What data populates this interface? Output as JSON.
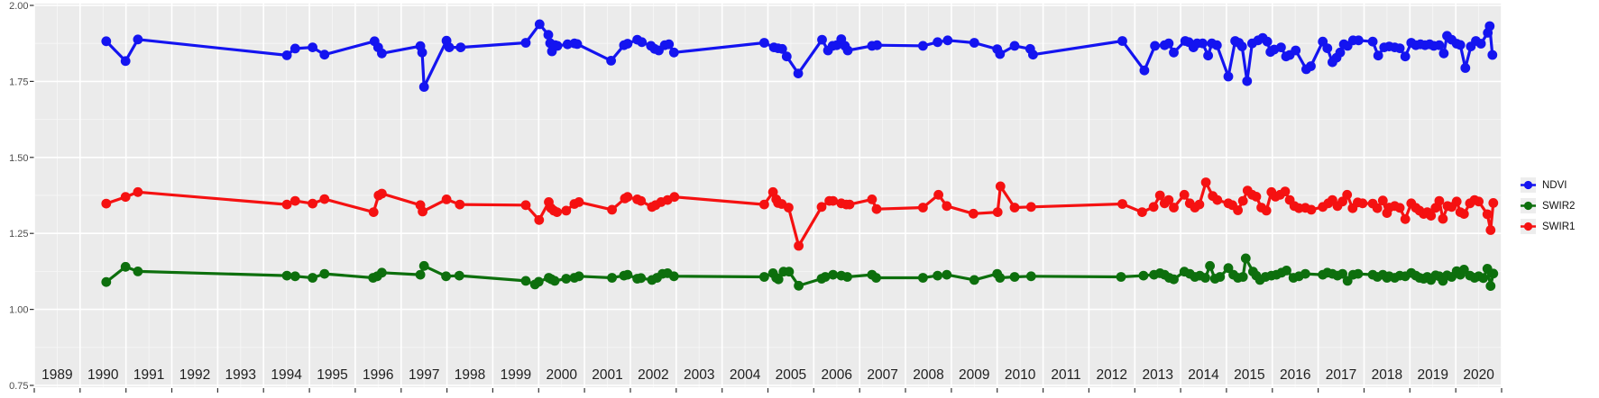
{
  "chart_data": {
    "type": "line-scatter",
    "title": "",
    "x_axis": {
      "range": [
        1989,
        2021
      ],
      "ticks": [
        "1989",
        "1990",
        "1991",
        "1992",
        "1993",
        "1994",
        "1995",
        "1996",
        "1997",
        "1998",
        "1999",
        "2000",
        "2001",
        "2002",
        "2003",
        "2004",
        "2005",
        "2006",
        "2007",
        "2008",
        "2009",
        "2010",
        "2011",
        "2012",
        "2013",
        "2014",
        "2015",
        "2016",
        "2017",
        "2018",
        "2019",
        "2020"
      ]
    },
    "y_axis": {
      "range": [
        0.75,
        2.0
      ],
      "ticks": [
        "0.75",
        "1.00",
        "1.25",
        "1.50",
        "1.75",
        "2.00"
      ]
    },
    "grid": {
      "panel_bg": "#ebebeb",
      "grid_color": "#ffffff",
      "minor_gridlines": true,
      "tick_color": "#333333",
      "x_label_color": "#1f1f1f",
      "y_label_color": "#4d4d4d"
    },
    "legend": {
      "position": "right-center",
      "key_bg": "#ededed",
      "entries": [
        {
          "label": "NDVI",
          "color": "#1414f0"
        },
        {
          "label": "SWIR2",
          "color": "#0d6f0d"
        },
        {
          "label": "SWIR1",
          "color": "#f51111"
        }
      ]
    },
    "series": [
      {
        "name": "NDVI",
        "color": "#1414f0",
        "x": [
          1990.57,
          1990.99,
          1991.26,
          1994.51,
          1994.69,
          1995.07,
          1995.33,
          1996.42,
          1996.5,
          1996.58,
          1997.42,
          1997.46,
          1997.5,
          1997.99,
          1998.05,
          1998.3,
          1999.72,
          2000.02,
          2000.21,
          2000.25,
          2000.29,
          2000.36,
          2000.41,
          2000.63,
          2000.78,
          2000.84,
          2001.58,
          2001.86,
          2001.94,
          2002.15,
          2002.25,
          2002.45,
          2002.53,
          2002.62,
          2002.75,
          2002.84,
          2002.95,
          2004.92,
          2005.13,
          2005.22,
          2005.31,
          2005.41,
          2005.66,
          2006.18,
          2006.31,
          2006.41,
          2006.5,
          2006.6,
          2006.68,
          2006.74,
          2007.27,
          2007.38,
          2008.38,
          2008.7,
          2008.92,
          2009.5,
          2010.0,
          2010.06,
          2010.38,
          2010.72,
          2010.78,
          2012.73,
          2013.21,
          2013.44,
          2013.65,
          2013.74,
          2013.85,
          2014.1,
          2014.18,
          2014.28,
          2014.36,
          2014.48,
          2014.6,
          2014.68,
          2014.79,
          2015.04,
          2015.19,
          2015.27,
          2015.34,
          2015.45,
          2015.56,
          2015.69,
          2015.79,
          2015.89,
          2015.96,
          2016.04,
          2016.19,
          2016.3,
          2016.38,
          2016.51,
          2016.74,
          2016.84,
          2017.1,
          2017.2,
          2017.31,
          2017.4,
          2017.48,
          2017.56,
          2017.64,
          2017.76,
          2017.88,
          2018.19,
          2018.31,
          2018.44,
          2018.55,
          2018.67,
          2018.78,
          2018.9,
          2019.03,
          2019.13,
          2019.23,
          2019.33,
          2019.43,
          2019.52,
          2019.64,
          2019.74,
          2019.81,
          2019.91,
          2020.02,
          2020.1,
          2020.21,
          2020.33,
          2020.44,
          2020.55,
          2020.7,
          2020.74,
          2020.8
        ],
        "y": [
          1.882,
          1.817,
          1.888,
          1.836,
          1.858,
          1.862,
          1.838,
          1.882,
          1.862,
          1.842,
          1.866,
          1.845,
          1.732,
          1.884,
          1.862,
          1.862,
          1.877,
          1.938,
          1.903,
          1.876,
          1.849,
          1.869,
          1.867,
          1.872,
          1.875,
          1.873,
          1.818,
          1.869,
          1.874,
          1.887,
          1.879,
          1.867,
          1.857,
          1.852,
          1.869,
          1.872,
          1.845,
          1.877,
          1.862,
          1.859,
          1.857,
          1.832,
          1.776,
          1.887,
          1.852,
          1.867,
          1.869,
          1.889,
          1.867,
          1.852,
          1.867,
          1.869,
          1.867,
          1.879,
          1.885,
          1.877,
          1.856,
          1.84,
          1.867,
          1.857,
          1.838,
          1.883,
          1.786,
          1.867,
          1.869,
          1.875,
          1.845,
          1.883,
          1.879,
          1.862,
          1.875,
          1.875,
          1.835,
          1.875,
          1.869,
          1.766,
          1.883,
          1.877,
          1.865,
          1.751,
          1.875,
          1.885,
          1.893,
          1.881,
          1.847,
          1.855,
          1.862,
          1.832,
          1.837,
          1.852,
          1.79,
          1.8,
          1.881,
          1.859,
          1.813,
          1.828,
          1.845,
          1.872,
          1.867,
          1.885,
          1.885,
          1.881,
          1.835,
          1.862,
          1.865,
          1.862,
          1.859,
          1.832,
          1.877,
          1.869,
          1.872,
          1.869,
          1.872,
          1.867,
          1.869,
          1.842,
          1.9,
          1.887,
          1.874,
          1.87,
          1.794,
          1.865,
          1.883,
          1.874,
          1.91,
          1.932,
          1.837
        ]
      },
      {
        "name": "SWIR2",
        "color": "#0d6f0d",
        "x": [
          1990.57,
          1990.99,
          1991.26,
          1994.51,
          1994.69,
          1995.07,
          1995.33,
          1996.39,
          1996.48,
          1996.58,
          1997.42,
          1997.5,
          1997.98,
          1998.27,
          1999.72,
          1999.92,
          2000.0,
          2000.22,
          2000.28,
          2000.35,
          2000.6,
          2000.78,
          2000.88,
          2001.6,
          2001.86,
          2001.94,
          2002.15,
          2002.23,
          2002.47,
          2002.58,
          2002.7,
          2002.81,
          2002.95,
          2004.92,
          2005.11,
          2005.18,
          2005.23,
          2005.34,
          2005.46,
          2005.67,
          2006.17,
          2006.25,
          2006.42,
          2006.6,
          2006.73,
          2007.27,
          2007.36,
          2008.38,
          2008.7,
          2008.9,
          2009.5,
          2010.0,
          2010.06,
          2010.38,
          2010.74,
          2012.7,
          2013.19,
          2013.42,
          2013.55,
          2013.65,
          2013.75,
          2013.85,
          2014.08,
          2014.2,
          2014.31,
          2014.42,
          2014.54,
          2014.64,
          2014.75,
          2014.86,
          2015.04,
          2015.15,
          2015.25,
          2015.36,
          2015.42,
          2015.58,
          2015.65,
          2015.73,
          2015.85,
          2015.98,
          2016.09,
          2016.2,
          2016.31,
          2016.46,
          2016.58,
          2016.72,
          2017.1,
          2017.2,
          2017.31,
          2017.42,
          2017.53,
          2017.64,
          2017.76,
          2017.87,
          2018.19,
          2018.29,
          2018.41,
          2018.5,
          2018.55,
          2018.67,
          2018.78,
          2018.9,
          2019.03,
          2019.13,
          2019.21,
          2019.3,
          2019.38,
          2019.46,
          2019.56,
          2019.64,
          2019.72,
          2019.81,
          2019.91,
          2020.02,
          2020.1,
          2020.18,
          2020.31,
          2020.41,
          2020.5,
          2020.6,
          2020.69,
          2020.76,
          2020.82
        ],
        "y": [
          1.09,
          1.14,
          1.125,
          1.111,
          1.109,
          1.104,
          1.117,
          1.104,
          1.109,
          1.121,
          1.114,
          1.143,
          1.109,
          1.111,
          1.094,
          1.082,
          1.091,
          1.104,
          1.099,
          1.094,
          1.101,
          1.104,
          1.109,
          1.104,
          1.111,
          1.114,
          1.101,
          1.103,
          1.097,
          1.104,
          1.117,
          1.119,
          1.109,
          1.107,
          1.119,
          1.104,
          1.099,
          1.124,
          1.124,
          1.078,
          1.101,
          1.107,
          1.114,
          1.111,
          1.107,
          1.114,
          1.104,
          1.104,
          1.111,
          1.114,
          1.097,
          1.117,
          1.104,
          1.107,
          1.109,
          1.107,
          1.111,
          1.114,
          1.119,
          1.114,
          1.104,
          1.099,
          1.124,
          1.117,
          1.107,
          1.111,
          1.104,
          1.143,
          1.101,
          1.107,
          1.136,
          1.114,
          1.104,
          1.107,
          1.168,
          1.124,
          1.111,
          1.097,
          1.107,
          1.111,
          1.114,
          1.121,
          1.128,
          1.104,
          1.109,
          1.117,
          1.114,
          1.121,
          1.117,
          1.111,
          1.117,
          1.094,
          1.114,
          1.117,
          1.114,
          1.107,
          1.114,
          1.104,
          1.109,
          1.104,
          1.111,
          1.109,
          1.12,
          1.111,
          1.104,
          1.101,
          1.107,
          1.097,
          1.112,
          1.109,
          1.094,
          1.112,
          1.107,
          1.126,
          1.114,
          1.131,
          1.111,
          1.104,
          1.109,
          1.103,
          1.134,
          1.077,
          1.118
        ]
      },
      {
        "name": "SWIR1",
        "color": "#f51111",
        "x": [
          1990.57,
          1990.99,
          1991.26,
          1994.51,
          1994.69,
          1995.07,
          1995.33,
          1996.4,
          1996.51,
          1996.58,
          1997.42,
          1997.47,
          1997.99,
          1998.28,
          1999.72,
          2000.01,
          2000.22,
          2000.27,
          2000.33,
          2000.4,
          2000.6,
          2000.78,
          2000.88,
          2001.6,
          2001.88,
          2001.94,
          2002.15,
          2002.23,
          2002.47,
          2002.55,
          2002.67,
          2002.81,
          2002.96,
          2004.92,
          2005.11,
          2005.18,
          2005.22,
          2005.3,
          2005.45,
          2005.67,
          2006.17,
          2006.34,
          2006.42,
          2006.6,
          2006.71,
          2006.78,
          2007.27,
          2007.37,
          2008.38,
          2008.72,
          2008.9,
          2009.48,
          2010.01,
          2010.07,
          2010.38,
          2010.74,
          2012.73,
          2013.16,
          2013.41,
          2013.55,
          2013.65,
          2013.74,
          2013.85,
          2014.08,
          2014.2,
          2014.31,
          2014.41,
          2014.55,
          2014.7,
          2014.8,
          2015.04,
          2015.13,
          2015.25,
          2015.36,
          2015.46,
          2015.56,
          2015.65,
          2015.76,
          2015.87,
          2015.98,
          2016.07,
          2016.17,
          2016.28,
          2016.38,
          2016.48,
          2016.58,
          2016.72,
          2016.85,
          2017.1,
          2017.22,
          2017.31,
          2017.42,
          2017.53,
          2017.63,
          2017.75,
          2017.86,
          2017.97,
          2018.19,
          2018.29,
          2018.41,
          2018.5,
          2018.55,
          2018.67,
          2018.78,
          2018.9,
          2019.03,
          2019.13,
          2019.21,
          2019.3,
          2019.38,
          2019.46,
          2019.56,
          2019.64,
          2019.72,
          2019.82,
          2019.91,
          2020.02,
          2020.1,
          2020.18,
          2020.31,
          2020.41,
          2020.5,
          2020.69,
          2020.76,
          2020.82
        ],
        "y": [
          1.348,
          1.37,
          1.386,
          1.345,
          1.357,
          1.348,
          1.363,
          1.32,
          1.375,
          1.381,
          1.343,
          1.322,
          1.362,
          1.345,
          1.343,
          1.294,
          1.353,
          1.333,
          1.325,
          1.32,
          1.325,
          1.347,
          1.353,
          1.328,
          1.365,
          1.37,
          1.362,
          1.357,
          1.337,
          1.343,
          1.353,
          1.36,
          1.37,
          1.345,
          1.386,
          1.362,
          1.35,
          1.347,
          1.335,
          1.209,
          1.337,
          1.357,
          1.357,
          1.349,
          1.345,
          1.345,
          1.362,
          1.33,
          1.335,
          1.377,
          1.34,
          1.315,
          1.32,
          1.405,
          1.335,
          1.337,
          1.347,
          1.32,
          1.337,
          1.375,
          1.349,
          1.36,
          1.335,
          1.377,
          1.349,
          1.335,
          1.345,
          1.418,
          1.373,
          1.36,
          1.349,
          1.343,
          1.326,
          1.357,
          1.391,
          1.377,
          1.371,
          1.335,
          1.325,
          1.386,
          1.371,
          1.377,
          1.388,
          1.36,
          1.34,
          1.333,
          1.334,
          1.328,
          1.337,
          1.349,
          1.36,
          1.34,
          1.355,
          1.377,
          1.333,
          1.352,
          1.349,
          1.348,
          1.333,
          1.358,
          1.317,
          1.335,
          1.34,
          1.334,
          1.297,
          1.349,
          1.334,
          1.325,
          1.314,
          1.32,
          1.308,
          1.334,
          1.357,
          1.298,
          1.34,
          1.337,
          1.355,
          1.32,
          1.314,
          1.349,
          1.36,
          1.355,
          1.313,
          1.261,
          1.35
        ]
      }
    ]
  }
}
